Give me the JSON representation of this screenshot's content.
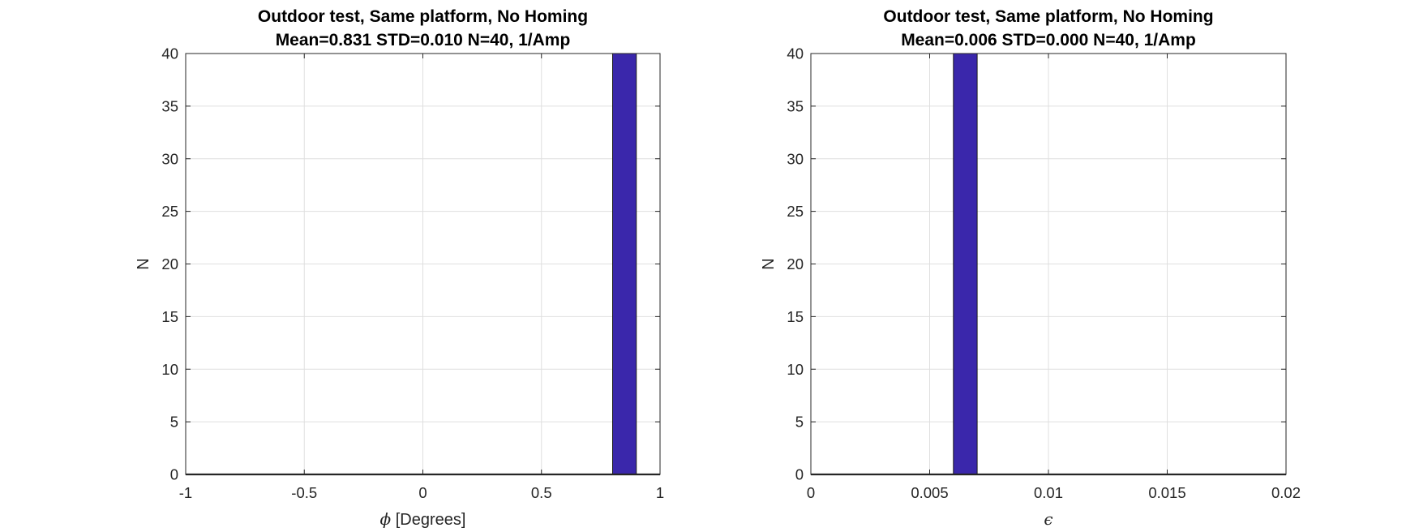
{
  "chart_data": [
    {
      "type": "bar",
      "title_line1": "Outdoor test, Same platform, No Homing",
      "title_line2": "Mean=0.831 STD=0.010 N=40, 1/Amp",
      "xlabel_symbol": "ϕ",
      "xlabel_text": " [Degrees]",
      "ylabel": "N",
      "xlim": [
        -1,
        1
      ],
      "ylim": [
        0,
        40
      ],
      "xticks": [
        -1,
        -0.5,
        0,
        0.5,
        1
      ],
      "xtick_labels": [
        "-1",
        "-0.5",
        "0",
        "0.5",
        "1"
      ],
      "yticks": [
        0,
        5,
        10,
        15,
        20,
        25,
        30,
        35,
        40
      ],
      "ytick_labels": [
        "0",
        "5",
        "10",
        "15",
        "20",
        "25",
        "30",
        "35",
        "40"
      ],
      "grid": true,
      "bar_color": "#3a27ab",
      "bins": [
        {
          "x0": 0.8,
          "x1": 0.9,
          "count": 40
        }
      ]
    },
    {
      "type": "bar",
      "title_line1": "Outdoor test, Same platform, No Homing",
      "title_line2": "Mean=0.006 STD=0.000 N=40, 1/Amp",
      "xlabel_symbol": "ϵ",
      "xlabel_text": "",
      "ylabel": "N",
      "xlim": [
        0,
        0.02
      ],
      "ylim": [
        0,
        40
      ],
      "xticks": [
        0,
        0.005,
        0.01,
        0.015,
        0.02
      ],
      "xtick_labels": [
        "0",
        "0.005",
        "0.01",
        "0.015",
        "0.02"
      ],
      "yticks": [
        0,
        5,
        10,
        15,
        20,
        25,
        30,
        35,
        40
      ],
      "ytick_labels": [
        "0",
        "5",
        "10",
        "15",
        "20",
        "25",
        "30",
        "35",
        "40"
      ],
      "grid": true,
      "bar_color": "#3a27ab",
      "bins": [
        {
          "x0": 0.006,
          "x1": 0.007,
          "count": 40
        }
      ]
    }
  ]
}
